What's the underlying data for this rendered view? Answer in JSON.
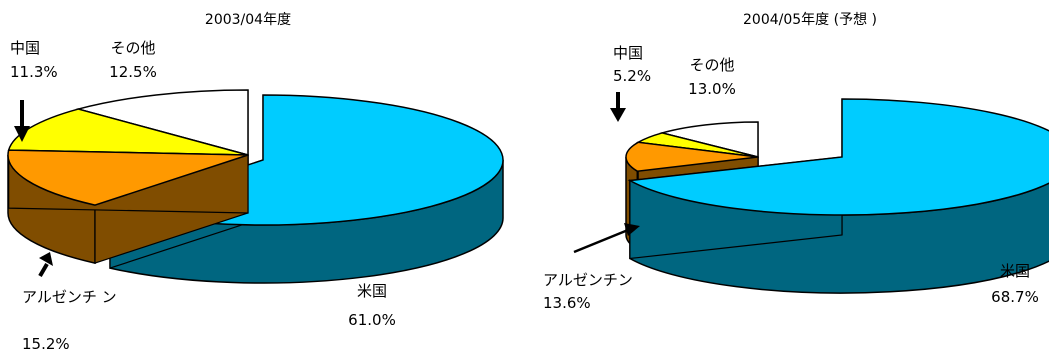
{
  "chart_data": [
    {
      "type": "pie",
      "title": "2003/04年度",
      "slices": [
        {
          "name": "米国",
          "value": 61.0,
          "label": "米国",
          "pct": "61.0%",
          "color": "#00ccff",
          "side": "#006680"
        },
        {
          "name": "アルゼンチン",
          "value": 15.2,
          "label": "アルゼンチ ン",
          "pct": "15.2%",
          "color": "#ff9900",
          "side": "#804d00"
        },
        {
          "name": "中国",
          "value": 11.3,
          "label": "中国",
          "pct": "11.3%",
          "color": "#ffff00",
          "side": "#808000"
        },
        {
          "name": "その他",
          "value": 12.5,
          "label": "その他",
          "pct": "12.5%",
          "color": "#ffffff",
          "side": "#808080"
        }
      ]
    },
    {
      "type": "pie",
      "title": "2004/05年度 (予想 )",
      "slices": [
        {
          "name": "米国",
          "value": 68.7,
          "label": "米国",
          "pct": "68.7%",
          "color": "#00ccff",
          "side": "#006680"
        },
        {
          "name": "アルゼンチン",
          "value": 13.6,
          "label": "アルゼンチン",
          "pct": "13.6%",
          "color": "#ff9900",
          "side": "#804d00"
        },
        {
          "name": "中国",
          "value": 5.2,
          "label": "中国",
          "pct": "5.2%",
          "color": "#ffff00",
          "side": "#808000"
        },
        {
          "name": "その他",
          "value": 13.0,
          "label": "その他",
          "pct": "13.0%",
          "color": "#ffffff",
          "side": "#808080"
        }
      ]
    }
  ]
}
